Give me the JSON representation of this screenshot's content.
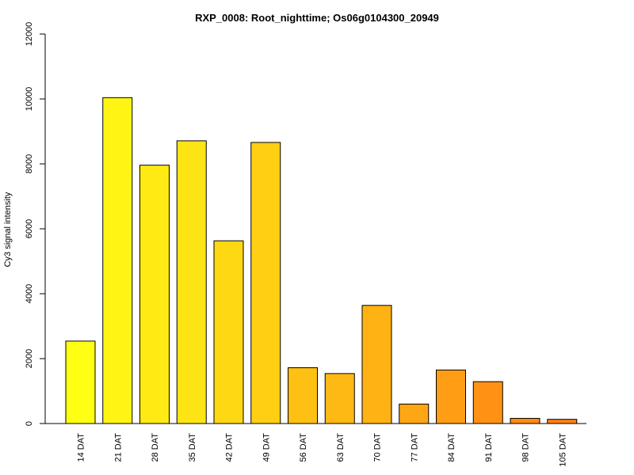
{
  "chart_data": {
    "type": "bar",
    "title": "RXP_0008: Root_nighttime; Os06g0104300_20949",
    "xlabel": "",
    "ylabel": "Cy3 signal intensity",
    "ylim": [
      0,
      12000
    ],
    "yticks": [
      0,
      2000,
      4000,
      6000,
      8000,
      10000,
      12000
    ],
    "grid": false,
    "categories": [
      "14 DAT",
      "21 DAT",
      "28 DAT",
      "35 DAT",
      "42 DAT",
      "49 DAT",
      "56 DAT",
      "63 DAT",
      "70 DAT",
      "77 DAT",
      "84 DAT",
      "91 DAT",
      "98 DAT",
      "105 DAT"
    ],
    "values": [
      2540,
      10040,
      7960,
      8710,
      5630,
      8660,
      1720,
      1540,
      3640,
      600,
      1650,
      1290,
      160,
      130
    ],
    "colors": [
      "#FFFF14",
      "#FFF414",
      "#FFEA14",
      "#FFE414",
      "#FFD814",
      "#FFCF14",
      "#FFC014",
      "#FFB914",
      "#FFB214",
      "#FFA614",
      "#FF9E14",
      "#FF9214",
      "#FF8A14",
      "#FF8014"
    ]
  }
}
